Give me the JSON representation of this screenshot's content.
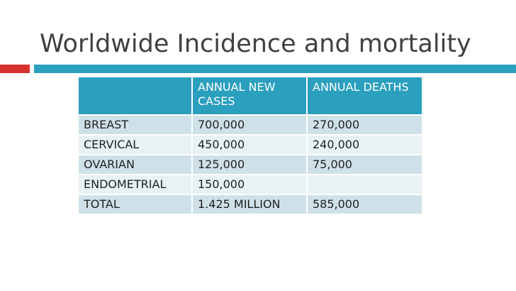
{
  "slide": {
    "title": "Worldwide Incidence and mortality"
  },
  "table": {
    "headers": [
      "",
      "ANNUAL NEW CASES",
      "ANNUAL DEATHS"
    ],
    "rows": [
      [
        "BREAST",
        "700,000",
        "270,000"
      ],
      [
        "CERVICAL",
        "450,000",
        "240,000"
      ],
      [
        "OVARIAN",
        "125,000",
        "75,000"
      ],
      [
        "ENDOMETRIAL",
        "150,000",
        ""
      ],
      [
        "TOTAL",
        "1.425 MILLION",
        "585,000"
      ]
    ]
  },
  "colors": {
    "accent_blue": "#2b9fbe",
    "accent_red": "#d9312f",
    "row_dark": "#cfe1e8",
    "row_light": "#e8f1f4",
    "title_text": "#404040"
  }
}
